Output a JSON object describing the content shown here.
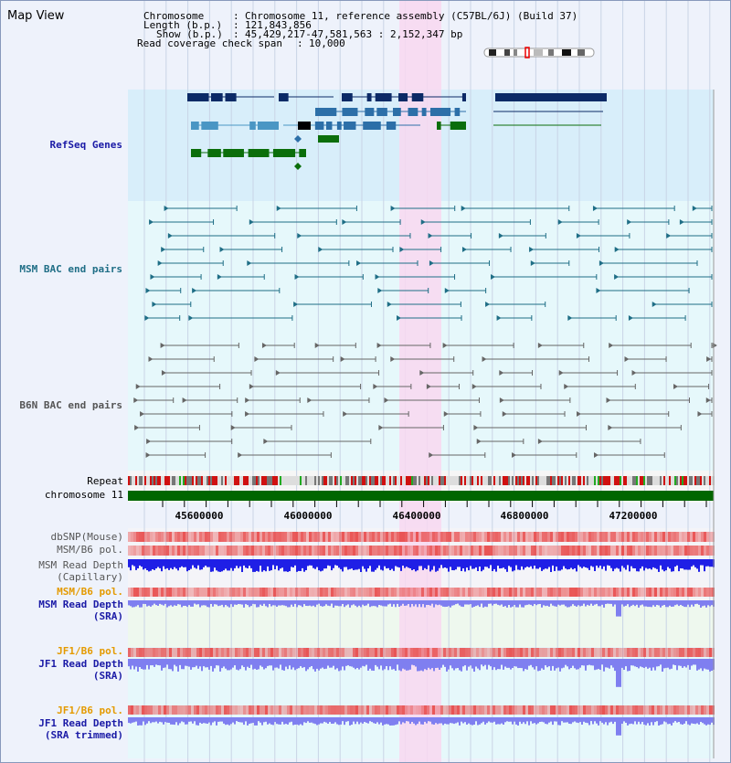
{
  "window": {
    "title": "Map View"
  },
  "info": {
    "chromosome_key": "Chromosome",
    "chromosome_value": "Chromosome 11, reference assembly (C57BL/6J) (Build 37)",
    "length_key": "Length (b.p.)",
    "length_value": "121,843,856",
    "show_key": "Show (b.p.)",
    "show_value": "45,429,217-47,581,563 : 2,152,347 bp",
    "coverage_key": "Read coverage check span",
    "coverage_value": "10,000"
  },
  "tracks": {
    "refseq": "RefSeq Genes",
    "msm_bac": "MSM BAC end pairs",
    "b6n_bac": "B6N BAC end pairs",
    "repeat": "Repeat",
    "chromosome": "chromosome 11",
    "dbsnp": "dbSNP(Mouse)",
    "msm_b6_pol": "MSM/B6 pol.",
    "msm_depth_cap_1": "MSM Read Depth",
    "msm_depth_cap_2": "(Capillary)",
    "msm_b6_pol_2": "MSM/B6 pol.",
    "msm_depth_sra_1": "MSM Read Depth",
    "msm_depth_sra_2": "(SRA)",
    "jf1_b6_pol_1": "JF1/B6 pol.",
    "jf1_depth_sra_1": "JF1 Read Depth",
    "jf1_depth_sra_2": "(SRA)",
    "jf1_b6_pol_2": "JF1/B6 pol.",
    "jf1_depth_trim_1": "JF1 Read Depth",
    "jf1_depth_trim_2": "(SRA trimmed)"
  },
  "scale": {
    "ticks": [
      "45600000",
      "46000000",
      "46400000",
      "46800000",
      "47200000"
    ]
  },
  "colors": {
    "refseq_bg": "#d8eefa",
    "bac_bg": "#e6f8fb",
    "highlight": "#f8d8f0",
    "gene_dark": "#0b2a66",
    "gene_mid": "#2c6fa8",
    "gene_light": "#4a96c4",
    "gene_green": "#0b6e0b",
    "msm_bac": "#1f6e86",
    "b6n_bac": "#666666",
    "chromosome": "#006600",
    "depth_dark": "#1f1fe6",
    "depth_light": "#7f7ff0",
    "pol_red": "#e84a4a",
    "pol_orange": "#e49a00",
    "label_blue": "#1a1aa6",
    "label_teal": "#1f6e86",
    "label_grey": "#555555"
  },
  "icons": [
    "chromosome-ideogram-icon"
  ]
}
